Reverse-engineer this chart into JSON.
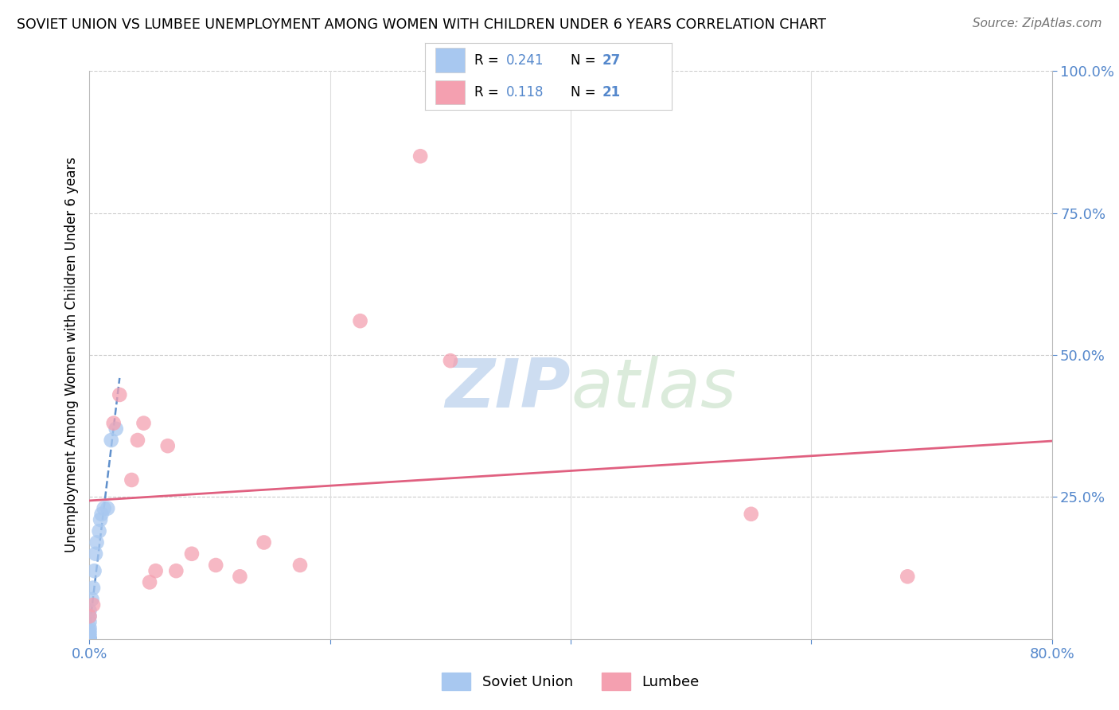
{
  "title": "SOVIET UNION VS LUMBEE UNEMPLOYMENT AMONG WOMEN WITH CHILDREN UNDER 6 YEARS CORRELATION CHART",
  "source": "Source: ZipAtlas.com",
  "ylabel": "Unemployment Among Women with Children Under 6 years",
  "xlim": [
    0.0,
    0.8
  ],
  "ylim": [
    0.0,
    1.0
  ],
  "xticks": [
    0.0,
    0.2,
    0.4,
    0.6,
    0.8
  ],
  "xtick_labels": [
    "0.0%",
    "",
    "",
    "",
    "80.0%"
  ],
  "right_yticks": [
    0.25,
    0.5,
    0.75,
    1.0
  ],
  "right_ytick_labels": [
    "25.0%",
    "50.0%",
    "75.0%",
    "100.0%"
  ],
  "soviet_union_x": [
    0.0,
    0.0,
    0.0,
    0.0,
    0.0,
    0.0,
    0.0,
    0.0,
    0.0,
    0.0,
    0.0,
    0.0,
    0.0,
    0.0,
    0.0,
    0.002,
    0.003,
    0.004,
    0.005,
    0.006,
    0.008,
    0.009,
    0.01,
    0.012,
    0.015,
    0.018,
    0.022
  ],
  "soviet_union_y": [
    0.0,
    0.0,
    0.0,
    0.0,
    0.0,
    0.0,
    0.0,
    0.0,
    0.005,
    0.01,
    0.015,
    0.02,
    0.03,
    0.04,
    0.05,
    0.07,
    0.09,
    0.12,
    0.15,
    0.17,
    0.19,
    0.21,
    0.22,
    0.23,
    0.23,
    0.35,
    0.37
  ],
  "lumbee_x": [
    0.0,
    0.003,
    0.02,
    0.025,
    0.035,
    0.04,
    0.045,
    0.05,
    0.055,
    0.065,
    0.072,
    0.085,
    0.105,
    0.125,
    0.145,
    0.175,
    0.225,
    0.275,
    0.3,
    0.55,
    0.68
  ],
  "lumbee_y": [
    0.04,
    0.06,
    0.38,
    0.43,
    0.28,
    0.35,
    0.38,
    0.1,
    0.12,
    0.34,
    0.12,
    0.15,
    0.13,
    0.11,
    0.17,
    0.13,
    0.56,
    0.85,
    0.49,
    0.22,
    0.11
  ],
  "soviet_R": 0.241,
  "soviet_N": 27,
  "lumbee_R": 0.118,
  "lumbee_N": 21,
  "soviet_color": "#a8c8f0",
  "soviet_line_color": "#6090cc",
  "lumbee_color": "#f4a0b0",
  "lumbee_line_color": "#e06080",
  "bg_color": "#ffffff",
  "grid_color": "#cccccc",
  "watermark_color": "#d5e5f5"
}
